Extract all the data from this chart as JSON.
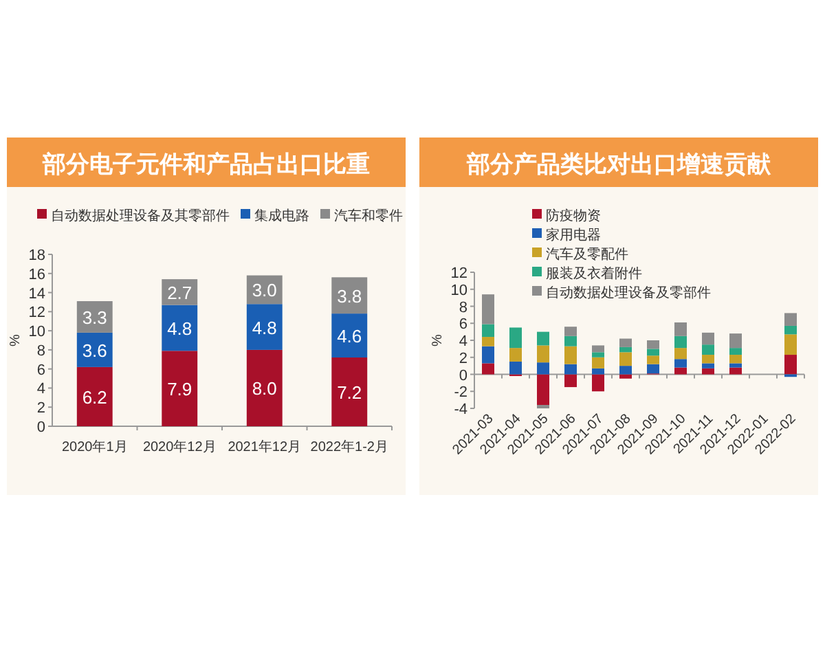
{
  "chart_data": [
    {
      "type": "bar",
      "stacked": true,
      "title": "部分电子元件和产品占出口比重",
      "ylabel": "%",
      "categories": [
        "2020年1月",
        "2020年12月",
        "2021年12月",
        "2022年1-2月"
      ],
      "series": [
        {
          "name": "自动数据处理设备及其零部件",
          "color": "#a8102a",
          "values": [
            6.2,
            7.9,
            8.0,
            7.2
          ],
          "value_labels": [
            "6.2",
            "7.9",
            "8.0",
            "7.2"
          ]
        },
        {
          "name": "集成电路",
          "color": "#1a5fb4",
          "values": [
            3.6,
            4.8,
            4.8,
            4.6
          ],
          "value_labels": [
            "3.6",
            "4.8",
            "4.8",
            "4.6"
          ]
        },
        {
          "name": "汽车和零件",
          "color": "#8a8a8a",
          "values": [
            3.3,
            2.7,
            3.0,
            3.8
          ],
          "value_labels": [
            "3.3",
            "2.7",
            "3.0",
            "3.8"
          ]
        }
      ],
      "ylim": [
        0,
        18
      ],
      "yticks": [
        0,
        2,
        4,
        6,
        8,
        10,
        12,
        14,
        16,
        18
      ],
      "legend": "top"
    },
    {
      "type": "bar",
      "stacked": true,
      "title": "部分产品类比对出口增速贡献",
      "ylabel": "%",
      "categories": [
        "2021-03",
        "2021-04",
        "2021-05",
        "2021-06",
        "2021-07",
        "2021-08",
        "2021-09",
        "2021-10",
        "2021-11",
        "2021-12",
        "2022-01",
        "2022-02"
      ],
      "series": [
        {
          "name": "防疫物资",
          "color": "#b0122c",
          "values": [
            1.3,
            -0.2,
            -3.6,
            -1.5,
            -2.0,
            -0.5,
            0.1,
            0.8,
            0.7,
            0.8,
            null,
            2.3
          ]
        },
        {
          "name": "家用电器",
          "color": "#1f5fb4",
          "values": [
            2.0,
            1.5,
            1.4,
            1.2,
            0.7,
            1.0,
            1.1,
            1.0,
            0.6,
            0.5,
            null,
            -0.3
          ]
        },
        {
          "name": "汽车及零配件",
          "color": "#c9a227",
          "values": [
            1.1,
            1.6,
            2.0,
            2.1,
            1.3,
            1.6,
            1.0,
            1.3,
            1.0,
            1.0,
            null,
            2.4
          ]
        },
        {
          "name": "服装及衣着附件",
          "color": "#2aa884",
          "values": [
            1.5,
            2.4,
            1.6,
            1.2,
            0.6,
            0.6,
            0.8,
            1.4,
            1.2,
            0.8,
            null,
            1.0
          ]
        },
        {
          "name": "自动数据处理设备及零部件",
          "color": "#8c8c8c",
          "values": [
            3.5,
            null,
            -0.4,
            1.1,
            0.8,
            1.0,
            1.0,
            1.6,
            1.4,
            1.7,
            null,
            1.5
          ]
        }
      ],
      "ylim": [
        -4,
        12
      ],
      "yticks": [
        -4,
        -2,
        0,
        2,
        4,
        6,
        8,
        10,
        12
      ],
      "legend": "top left"
    }
  ]
}
